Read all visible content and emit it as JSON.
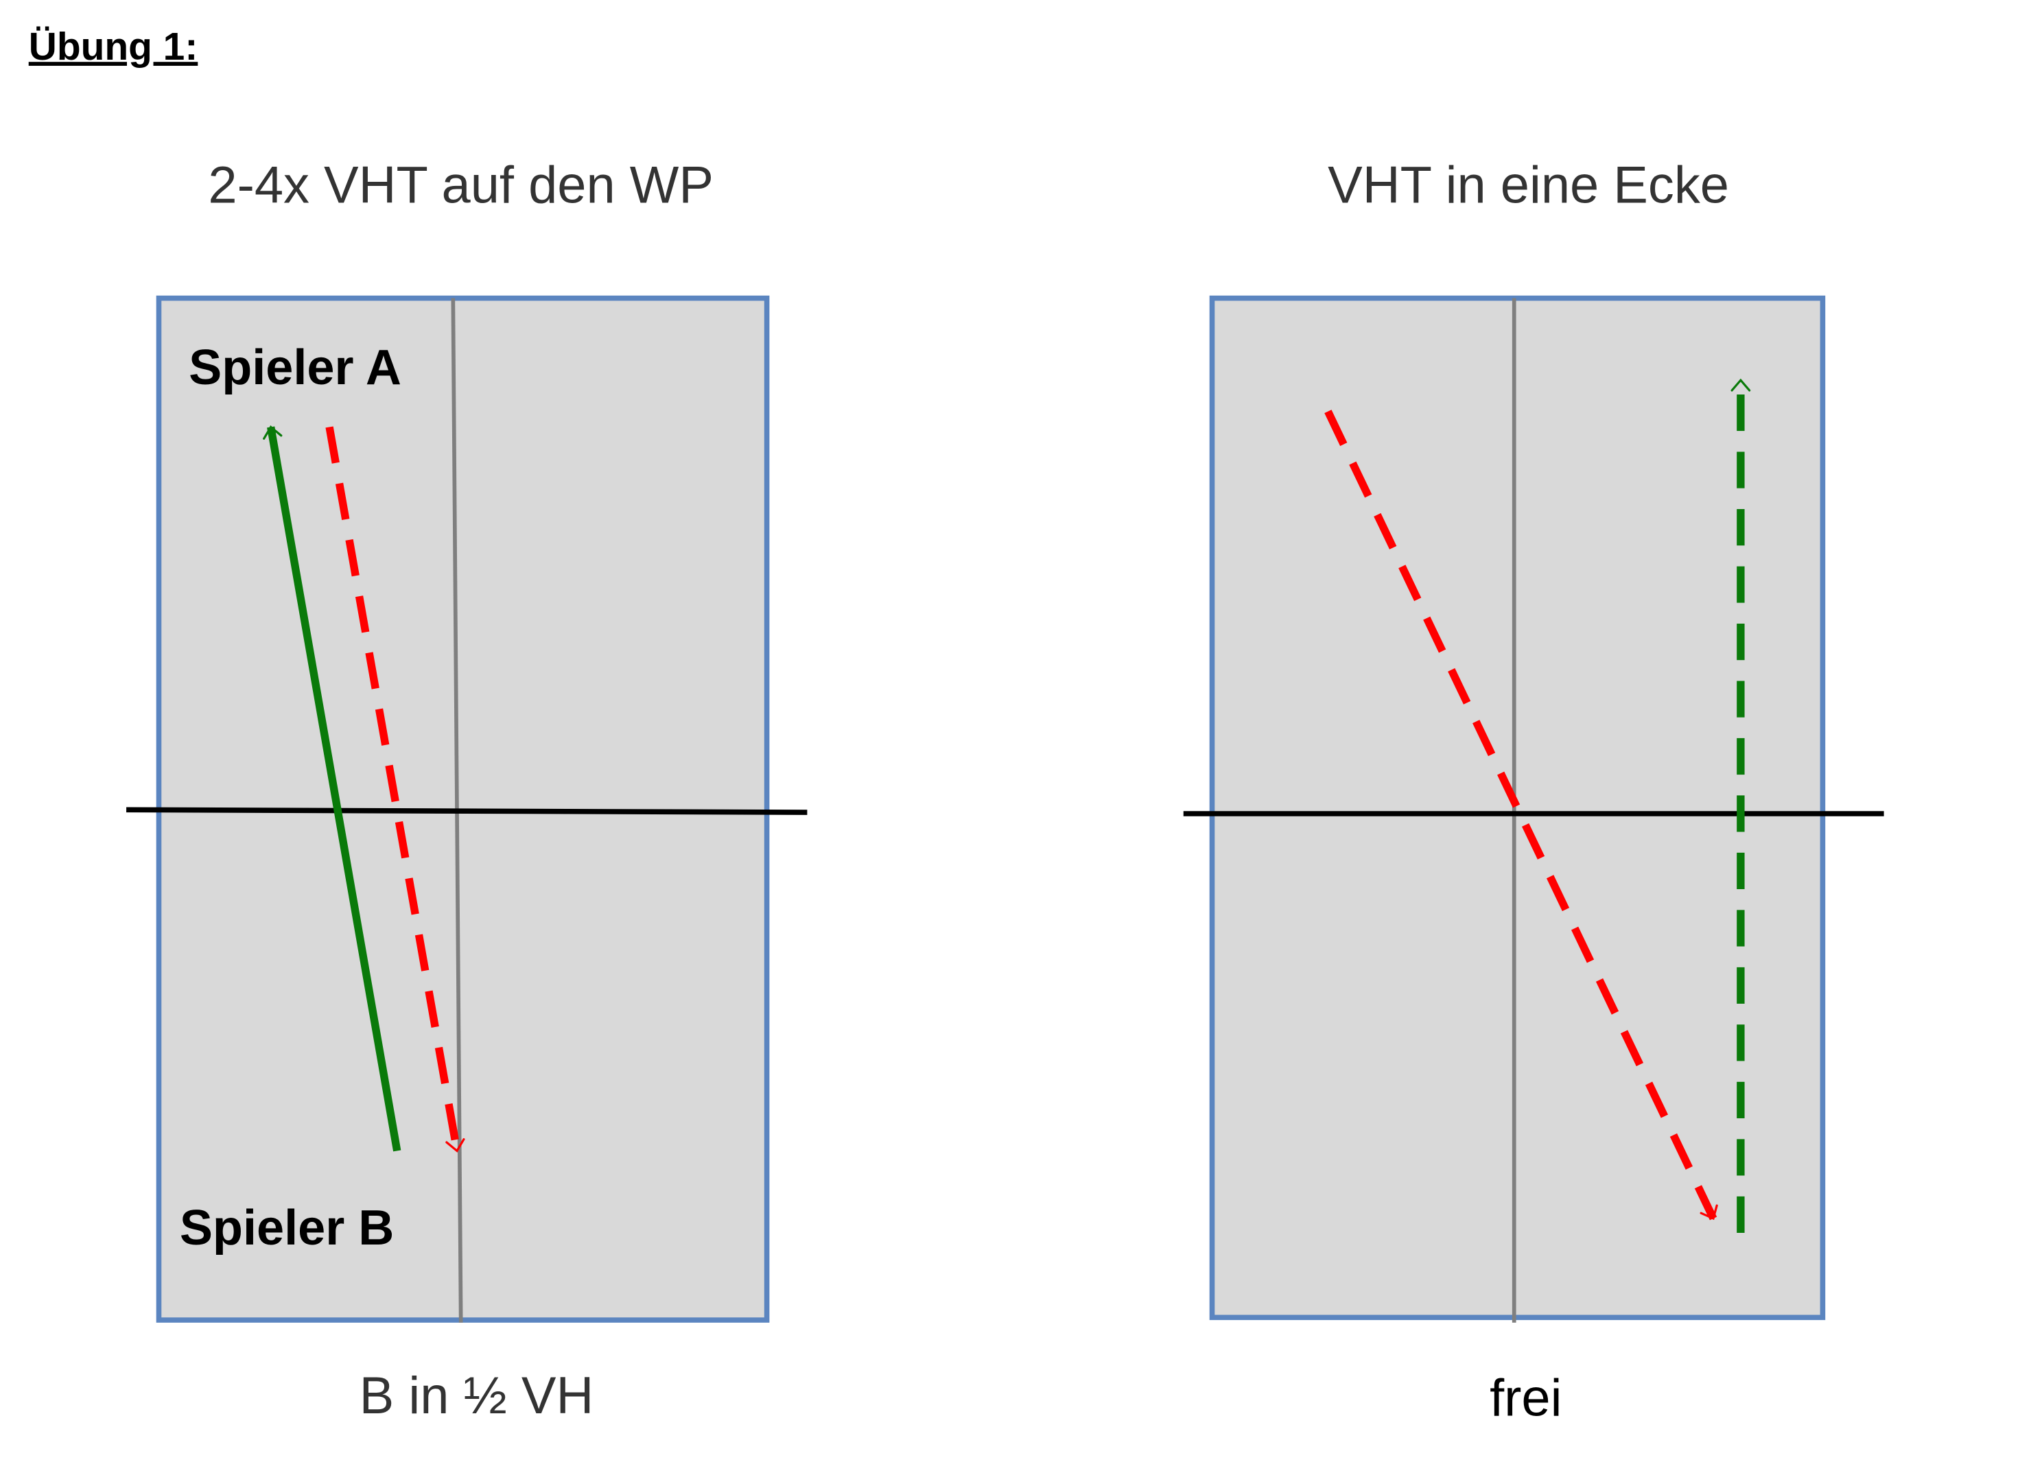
{
  "header": {
    "title": "Übung 1:"
  },
  "panels": [
    {
      "heading": "2-4x VHT auf den WP",
      "labels": [
        "Spieler A",
        "Spieler B"
      ],
      "caption": "B in ½ VH"
    },
    {
      "heading": "VHT in eine Ecke",
      "caption": "frei"
    }
  ]
}
